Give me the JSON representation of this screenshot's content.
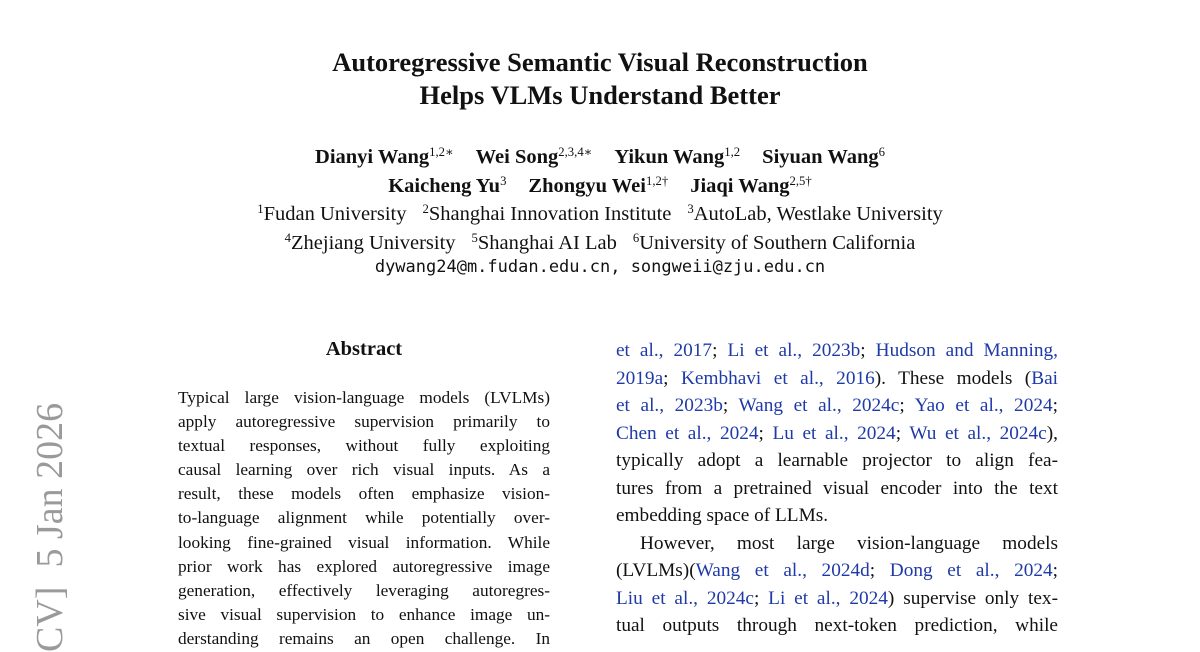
{
  "side_stamp": "CV]  5 Jan 2026",
  "header": {
    "title": [
      "Autoregressive Semantic Visual Reconstruction",
      "Helps VLMs Understand Better"
    ],
    "authors": [
      [
        {
          "name": "Dianyi Wang",
          "affil": "1,2∗"
        },
        {
          "name": "Wei Song",
          "affil": "2,3,4∗"
        },
        {
          "name": "Yikun Wang",
          "affil": "1,2"
        },
        {
          "name": "Siyuan Wang",
          "affil": "6"
        }
      ],
      [
        {
          "name": "Kaicheng Yu",
          "affil": "3"
        },
        {
          "name": "Zhongyu Wei",
          "affil": "1,2†"
        },
        {
          "name": "Jiaqi Wang",
          "affil": "2,5†"
        }
      ]
    ],
    "affiliations": [
      [
        {
          "num": "1",
          "name": "Fudan University"
        },
        {
          "num": "2",
          "name": "Shanghai Innovation Institute"
        },
        {
          "num": "3",
          "name": "AutoLab, Westlake University"
        }
      ],
      [
        {
          "num": "4",
          "name": "Zhejiang University"
        },
        {
          "num": "5",
          "name": "Shanghai AI Lab"
        },
        {
          "num": "6",
          "name": "University of Southern California"
        }
      ]
    ],
    "email": "dywang24@m.fudan.edu.cn, songweii@zju.edu.cn"
  },
  "abstract": {
    "heading": "Abstract",
    "lines": [
      "Typical large vision-language models (LVLMs)",
      "apply autoregressive supervision primarily to",
      "textual responses, without fully exploiting",
      "causal learning over rich visual inputs. As a",
      "result, these models often emphasize vision-",
      "to-language alignment while potentially over-",
      "looking fine-grained visual information. While",
      "prior work has explored autoregressive image",
      "generation, effectively leveraging autoregres-",
      "sive visual supervision to enhance image un-",
      "derstanding remains an open challenge. In"
    ]
  },
  "body": {
    "paragraphs": [
      [
        [
          {
            "citation": "et al., 2017"
          },
          {
            "text": "; "
          },
          {
            "citation": "Li et al., 2023b"
          },
          {
            "text": "; "
          },
          {
            "citation": "Hudson and Manning,"
          }
        ],
        [
          {
            "citation": "2019a"
          },
          {
            "text": "; "
          },
          {
            "citation": "Kembhavi et al., 2016"
          },
          {
            "text": "). These models ("
          },
          {
            "citation": "Bai"
          }
        ],
        [
          {
            "citation": "et al., 2023b"
          },
          {
            "text": "; "
          },
          {
            "citation": "Wang et al., 2024c"
          },
          {
            "text": "; "
          },
          {
            "citation": "Yao et al., 2024"
          },
          {
            "text": ";"
          }
        ],
        [
          {
            "citation": "Chen et al., 2024"
          },
          {
            "text": "; "
          },
          {
            "citation": "Lu et al., 2024"
          },
          {
            "text": "; "
          },
          {
            "citation": "Wu et al., 2024c"
          },
          {
            "text": "),"
          }
        ],
        [
          {
            "text": "typically adopt a learnable projector to align fea-"
          }
        ],
        [
          {
            "text": "tures from a pretrained visual encoder into the text"
          }
        ],
        [
          {
            "text": "embedding space of LLMs."
          }
        ]
      ],
      [
        [
          {
            "text": "However, most large vision-language models"
          }
        ],
        [
          {
            "text": "(LVLMs)("
          },
          {
            "citation": "Wang et al., 2024d"
          },
          {
            "text": "; "
          },
          {
            "citation": "Dong et al., 2024"
          },
          {
            "text": ";"
          }
        ],
        [
          {
            "citation": "Liu et al., 2024c"
          },
          {
            "text": "; "
          },
          {
            "citation": "Li et al., 2024"
          },
          {
            "text": ") supervise only tex-"
          }
        ],
        [
          {
            "text": "tual outputs through next-token prediction, while"
          }
        ]
      ]
    ]
  }
}
